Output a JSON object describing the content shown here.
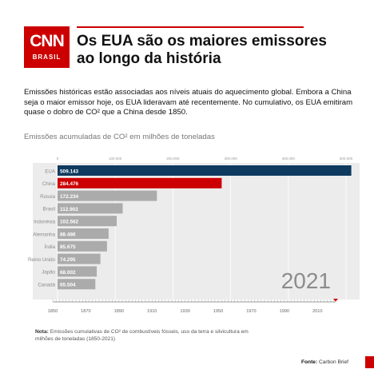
{
  "logo": {
    "brand": "CNN",
    "region": "BRASIL"
  },
  "headline": "Os EUA são os maiores emissores ao longo da história",
  "intro": "Emissões históricas estão associadas aos níveis atuais do aquecimento global. Embora a China seja o maior emissor hoje, os EUA lideravam até recentemente. No cumulativo, os EUA emitiram quase o dobro de CO² que a China desde 1850.",
  "chart_title": "Emissões acumuladas de CO² em milhões de toneladas",
  "note_label": "Nota:",
  "note_text": " Emissões cumulativas de CO² de combustíveis fósseis, uso da terra e silvicultura em milhões de toneladas (1850-2021)",
  "source_label": "Fonte:",
  "source_text": " Carbon Brief",
  "colors": {
    "brand_red": "#cc0000",
    "usa_bar": "#0e3a5f",
    "china_bar": "#cc0000",
    "other_bar": "#ababab",
    "plot_bg": "#ececec"
  },
  "chart_data": {
    "type": "bar",
    "orientation": "horizontal",
    "categories": [
      "EUA",
      "China",
      "Rússia",
      "Brasil",
      "Indonésia",
      "Alemanha",
      "Índia",
      "Reino Unido",
      "Japão",
      "Canadá"
    ],
    "values": [
      509143,
      284476,
      172234,
      112902,
      102562,
      88486,
      85675,
      74295,
      68002,
      65504
    ],
    "value_labels": [
      "509.143",
      "284.476",
      "172.234",
      "112.902",
      "102.562",
      "88.486",
      "85.675",
      "74.295",
      "68.002",
      "65.504"
    ],
    "xlim": [
      0,
      500000
    ],
    "x_ticks": [
      "0",
      "100.000",
      "200.000",
      "300.000",
      "400.000",
      "500.000"
    ],
    "year_label": "2021",
    "timeline_ticks": [
      "1850",
      "1870",
      "1890",
      "1910",
      "1930",
      "1950",
      "1970",
      "1990",
      "2010"
    ],
    "grid": true
  }
}
